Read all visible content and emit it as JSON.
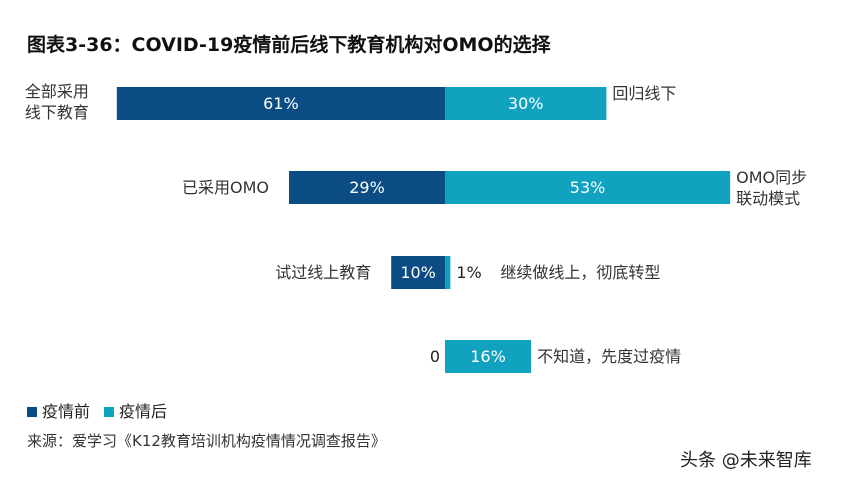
{
  "chart_data": {
    "type": "bar",
    "title": "图表3-36：COVID-19疫情前后线下教育机构对OMO的选择",
    "categories": [
      "全部采用线下教育",
      "已采用OMO",
      "试过线上教育",
      "0"
    ],
    "right_labels": [
      "回归线下",
      "OMO同步联动模式",
      "继续做线上，彻底转型",
      "不知道，先度过疫情"
    ],
    "series": [
      {
        "name": "疫情前",
        "values": [
          61,
          29,
          10,
          0
        ],
        "color": "#0b4c84"
      },
      {
        "name": "疫情后",
        "values": [
          30,
          53,
          1,
          16
        ],
        "color": "#10a2bf"
      }
    ],
    "data_labels_before": [
      "61%",
      "29%",
      "10%",
      "0"
    ],
    "data_labels_after": [
      "30%",
      "53%",
      "1%",
      "16%"
    ],
    "legend_position": "bottom-left",
    "grid": false
  },
  "source": "来源：爱学习《K12教育培训机构疫情情况调查报告》",
  "watermark": "头条 @未来智库"
}
